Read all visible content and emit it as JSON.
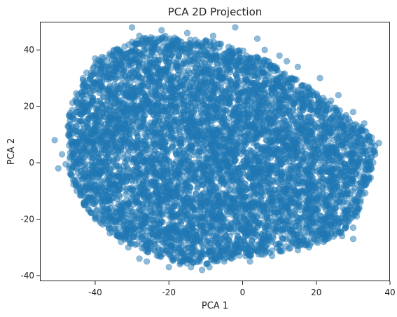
{
  "chart_data": {
    "type": "scatter",
    "title": "PCA 2D Projection",
    "xlabel": "PCA 1",
    "ylabel": "PCA 2",
    "xlim": [
      -55,
      40
    ],
    "ylim": [
      -42,
      50
    ],
    "xticks": [
      {
        "value": -40,
        "label": "-40"
      },
      {
        "value": -20,
        "label": "-20"
      },
      {
        "value": 0,
        "label": "0"
      },
      {
        "value": 20,
        "label": "20"
      },
      {
        "value": 40,
        "label": "40"
      }
    ],
    "yticks": [
      {
        "value": -40,
        "label": "-40"
      },
      {
        "value": -20,
        "label": "-20"
      },
      {
        "value": 0,
        "label": "0"
      },
      {
        "value": 20,
        "label": "20"
      },
      {
        "value": 40,
        "label": "40"
      }
    ],
    "grid": false,
    "marker_color": "#1f77b4",
    "marker_alpha": 0.5,
    "points": [
      [
        -51,
        8
      ],
      [
        -49,
        3
      ],
      [
        -48,
        -0.5
      ],
      [
        -46,
        3
      ],
      [
        -47,
        11
      ],
      [
        -45,
        18
      ],
      [
        -44,
        23
      ],
      [
        -43,
        28
      ],
      [
        -40,
        37
      ],
      [
        -36,
        33
      ],
      [
        -30,
        48
      ],
      [
        -28,
        45
      ],
      [
        -22,
        47
      ],
      [
        -15,
        46
      ],
      [
        -8,
        45
      ],
      [
        -2,
        48
      ],
      [
        4,
        44
      ],
      [
        10,
        38
      ],
      [
        15,
        34
      ],
      [
        21,
        30
      ],
      [
        26,
        24
      ],
      [
        30,
        18
      ],
      [
        33,
        14
      ],
      [
        35,
        9
      ],
      [
        37,
        7
      ],
      [
        36,
        3
      ],
      [
        35,
        -2
      ],
      [
        33,
        -8
      ],
      [
        32,
        -14
      ],
      [
        31,
        -19
      ],
      [
        30,
        -23
      ],
      [
        27,
        -26
      ],
      [
        22,
        -28
      ],
      [
        15,
        -31
      ],
      [
        8,
        -33
      ],
      [
        2,
        -35
      ],
      [
        -5,
        -35
      ],
      [
        -11,
        -38
      ],
      [
        -14,
        -37
      ],
      [
        -20,
        -37
      ],
      [
        -28,
        -34
      ],
      [
        -31,
        -30
      ],
      [
        -36,
        -25
      ],
      [
        -40,
        -20
      ],
      [
        -43,
        -15
      ],
      [
        -45,
        -10
      ],
      [
        -46,
        -6
      ],
      [
        -47,
        -2
      ],
      [
        -50,
        -2
      ],
      [
        -41,
        31
      ],
      [
        -38,
        27
      ],
      [
        -24,
        44
      ],
      [
        -18,
        42
      ],
      [
        6,
        40
      ],
      [
        12,
        36
      ],
      [
        24,
        22
      ],
      [
        28,
        12
      ],
      [
        30,
        -27
      ],
      [
        -26,
        -35
      ],
      [
        -33,
        -28
      ],
      [
        -3,
        -34
      ],
      [
        18,
        -30
      ],
      [
        -9,
        -37
      ],
      [
        -17,
        -36
      ]
    ],
    "blob": {
      "center": [
        -5,
        2
      ],
      "radii": [
        34,
        27
      ],
      "count": 6500,
      "seed": 7,
      "outline": [
        [
          -48,
          12
        ],
        [
          -47,
          4
        ],
        [
          -47,
          -4
        ],
        [
          -45,
          -11
        ],
        [
          -42,
          -17
        ],
        [
          -38,
          -22
        ],
        [
          -33,
          -27
        ],
        [
          -28,
          -31
        ],
        [
          -22,
          -34
        ],
        [
          -16,
          -36
        ],
        [
          -10,
          -36
        ],
        [
          -4,
          -34
        ],
        [
          4,
          -33
        ],
        [
          12,
          -31
        ],
        [
          20,
          -29
        ],
        [
          27,
          -25
        ],
        [
          31,
          -19
        ],
        [
          33,
          -12
        ],
        [
          35,
          -5
        ],
        [
          36,
          2
        ],
        [
          36,
          7
        ],
        [
          33,
          12
        ],
        [
          29,
          16
        ],
        [
          24,
          21
        ],
        [
          19,
          26
        ],
        [
          13,
          31
        ],
        [
          7,
          36
        ],
        [
          0,
          40
        ],
        [
          -7,
          43
        ],
        [
          -14,
          44
        ],
        [
          -21,
          45
        ],
        [
          -28,
          44
        ],
        [
          -34,
          41
        ],
        [
          -39,
          37
        ],
        [
          -43,
          31
        ],
        [
          -45,
          25
        ],
        [
          -47,
          19
        ]
      ]
    }
  }
}
